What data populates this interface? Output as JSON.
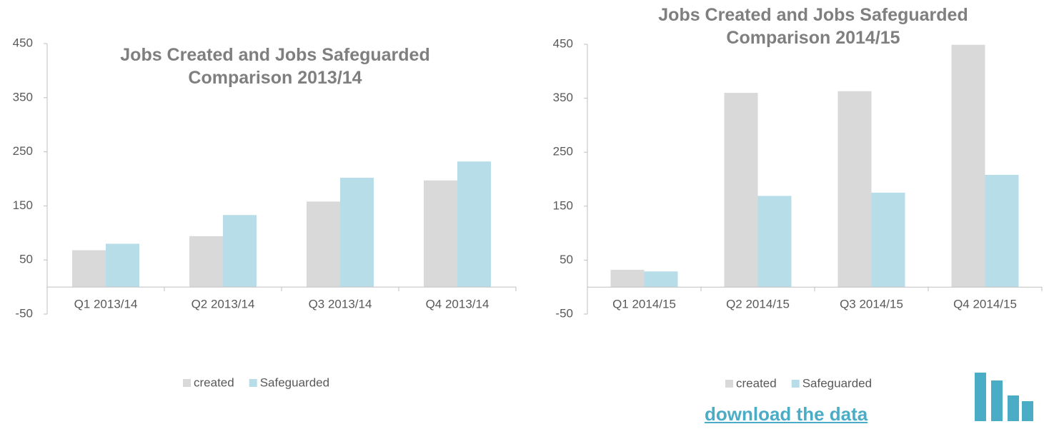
{
  "chart_data": [
    {
      "type": "bar",
      "title": "Jobs Created and  Jobs Safeguarded\nComparison  2013/14",
      "categories": [
        "Q1 2013/14",
        "Q2 2013/14",
        "Q3 2013/14",
        "Q4 2013/14"
      ],
      "series": [
        {
          "name": "created",
          "color": "#d9d9d9",
          "values": [
            68,
            94,
            158,
            197
          ]
        },
        {
          "name": "Safeguarded",
          "color": "#b7dde8",
          "values": [
            80,
            133,
            202,
            232
          ]
        }
      ],
      "ylim": [
        -50,
        450
      ],
      "yticks": [
        -50,
        50,
        150,
        250,
        350,
        450
      ]
    },
    {
      "type": "bar",
      "title": "Jobs Created and  Jobs Safeguarded\nComparison 2014/15",
      "categories": [
        "Q1 2014/15",
        "Q2 2014/15",
        "Q3 2014/15",
        "Q4 2014/15"
      ],
      "series": [
        {
          "name": "created",
          "color": "#d9d9d9",
          "values": [
            32,
            360,
            363,
            449
          ]
        },
        {
          "name": "Safeguarded",
          "color": "#b7dde8",
          "values": [
            29,
            169,
            175,
            208
          ]
        }
      ],
      "ylim": [
        -50,
        450
      ],
      "yticks": [
        -50,
        50,
        150,
        250,
        350,
        450
      ]
    }
  ],
  "link": "download the data"
}
